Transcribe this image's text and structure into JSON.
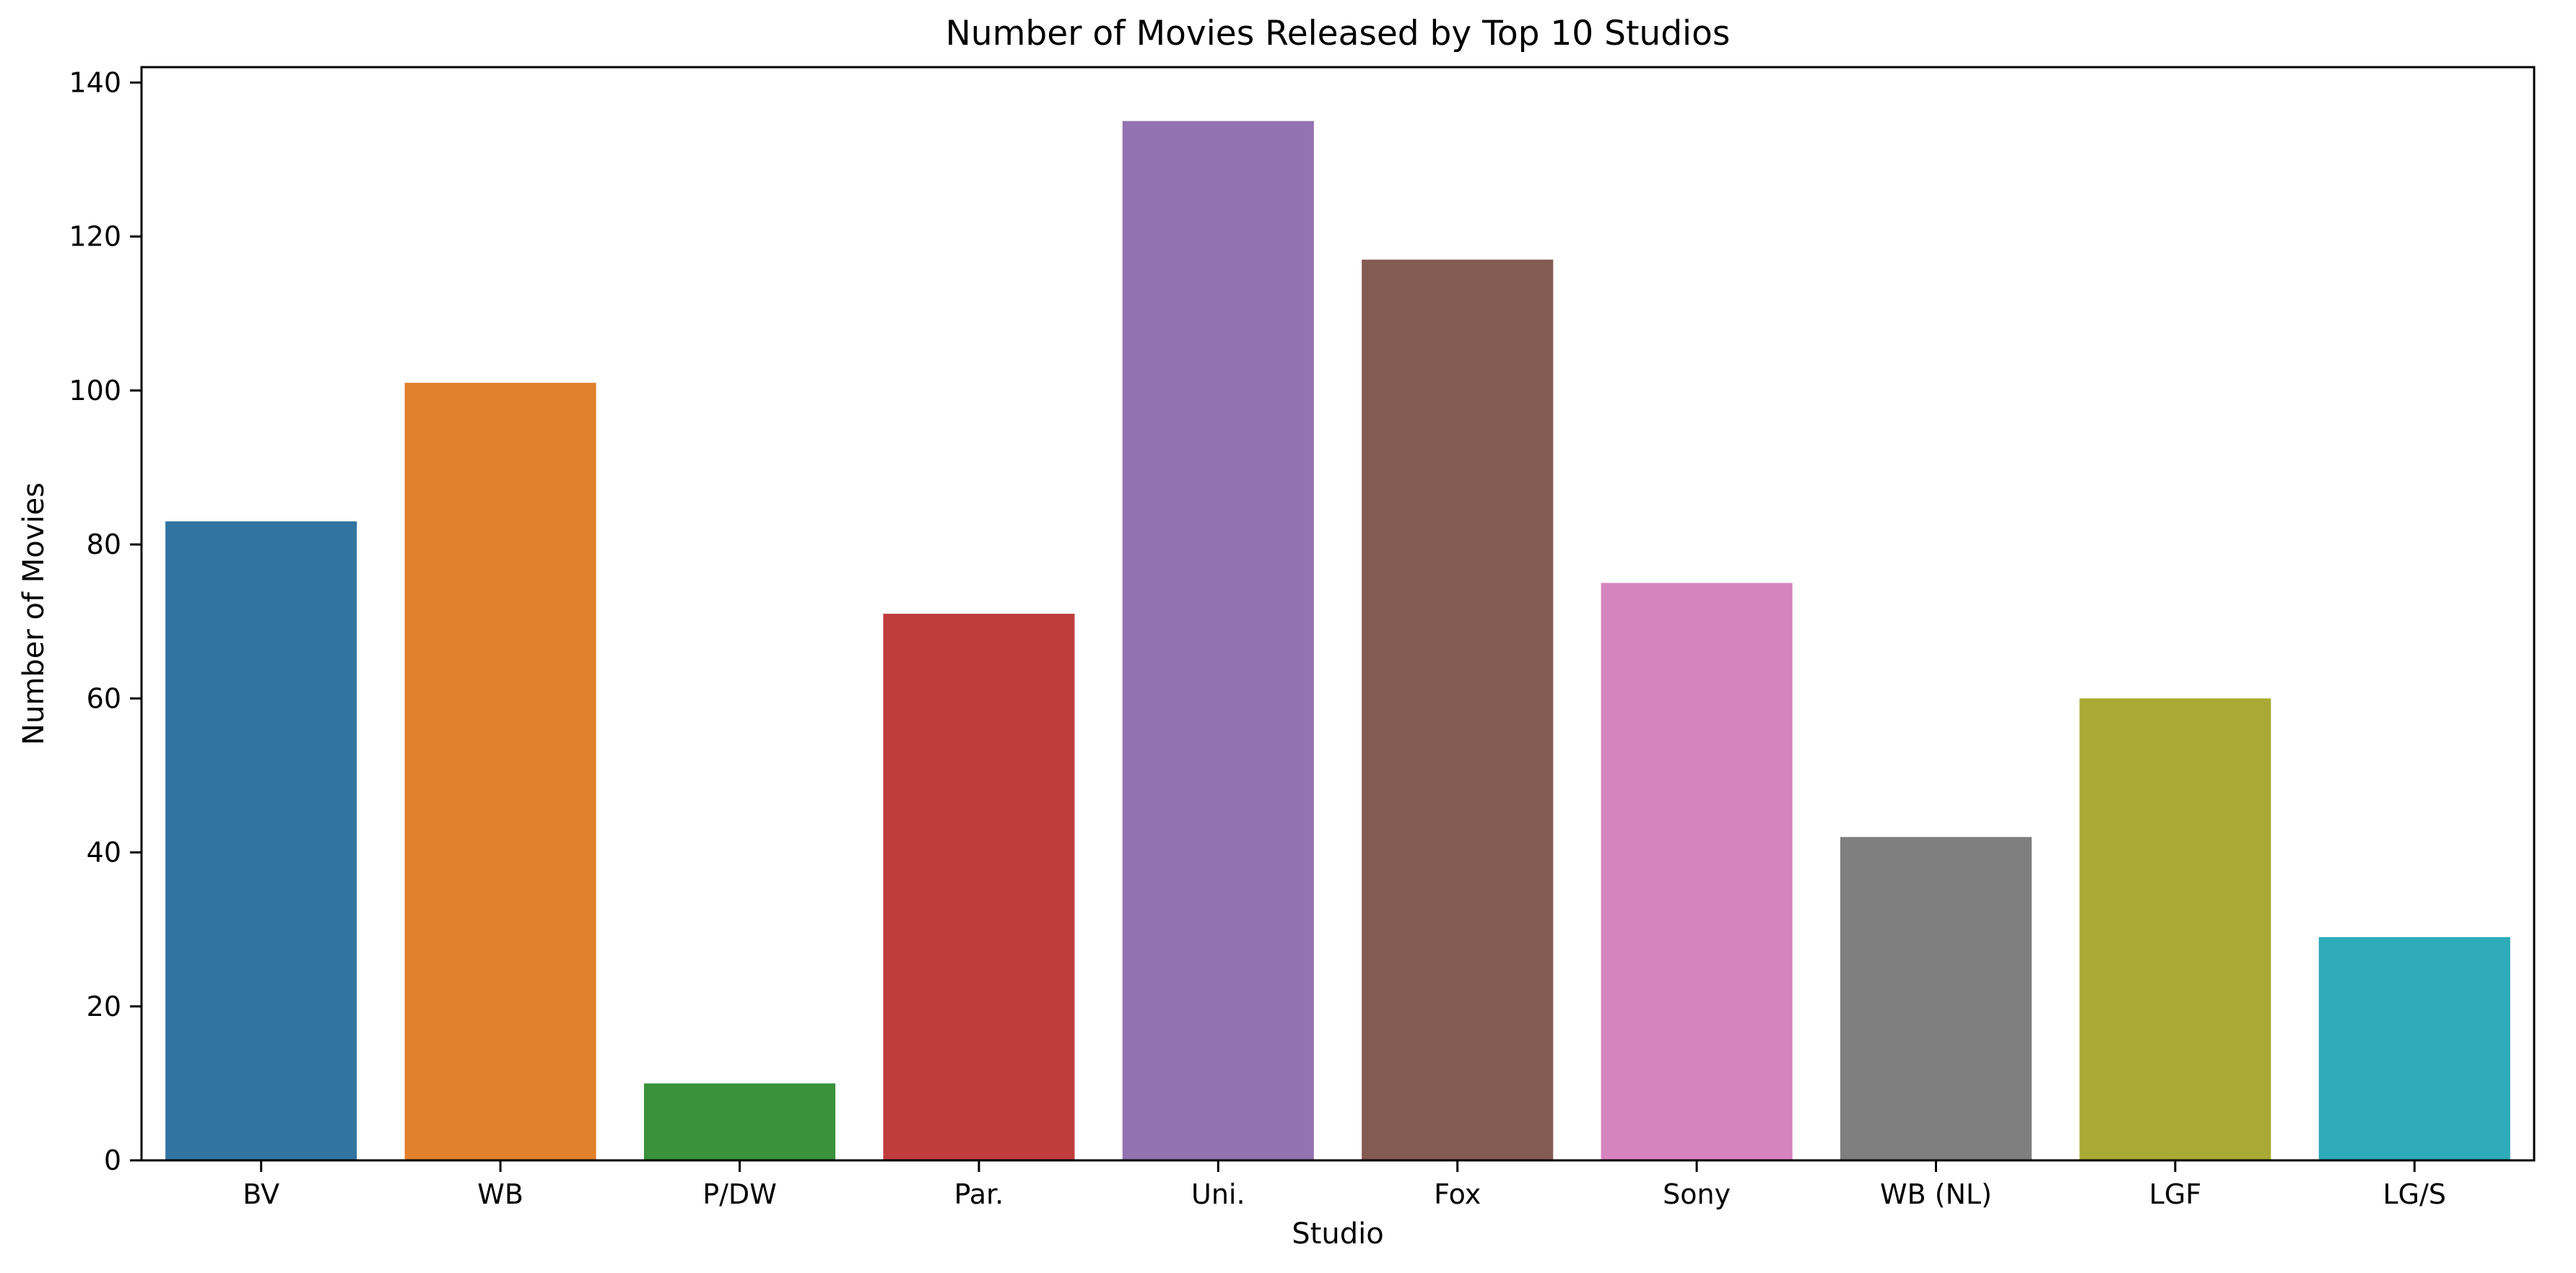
{
  "chart_data": {
    "type": "bar",
    "title": "Number of Movies Released by Top 10 Studios",
    "xlabel": "Studio",
    "ylabel": "Number of Movies",
    "categories": [
      "BV",
      "WB",
      "P/DW",
      "Par.",
      "Uni.",
      "Fox",
      "Sony",
      "WB (NL)",
      "LGF",
      "LG/S"
    ],
    "values": [
      83,
      101,
      10,
      71,
      135,
      117,
      75,
      42,
      60,
      29
    ],
    "colors": [
      "#3274a1",
      "#e1812c",
      "#3a923a",
      "#c03d3e",
      "#9372b2",
      "#845b53",
      "#d684bd",
      "#7f7f7f",
      "#a9aa35",
      "#2eabb8"
    ],
    "ylim": [
      0,
      142
    ],
    "yticks": [
      0,
      20,
      40,
      60,
      80,
      100,
      120,
      140
    ],
    "grid": false,
    "legend": "none"
  }
}
